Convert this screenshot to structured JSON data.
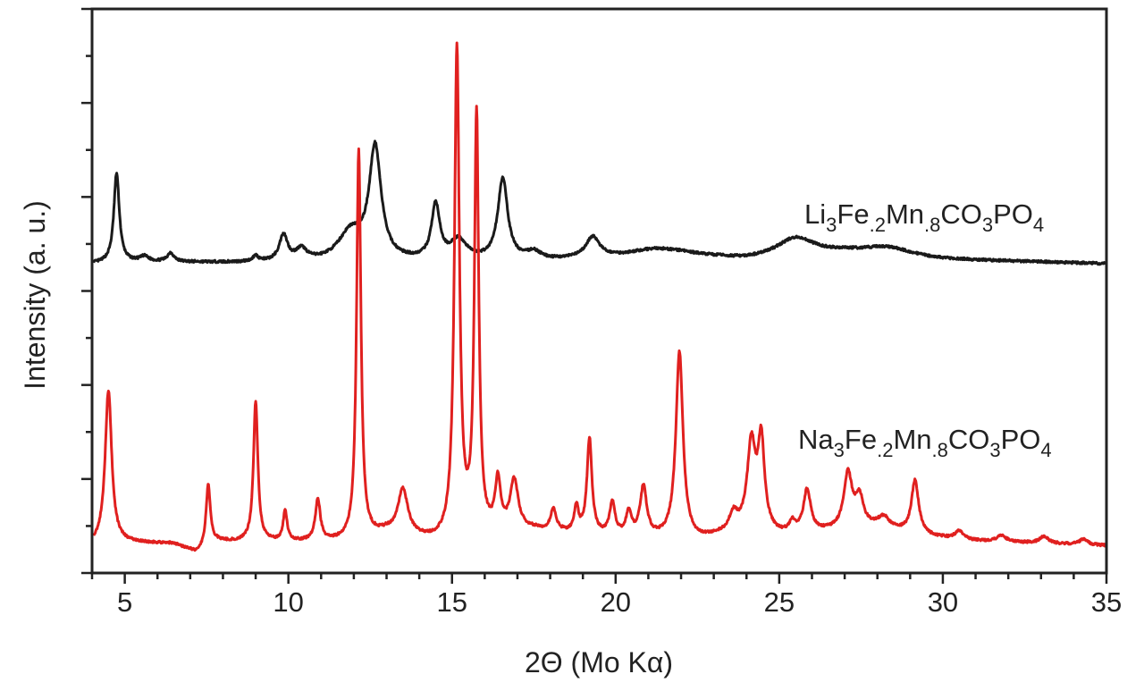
{
  "chart_data": {
    "type": "line",
    "title": "",
    "xlabel": "2Θ (Mo Kα)",
    "ylabel": "Intensity (a. u.)",
    "xlim": [
      4,
      35
    ],
    "ylim": [
      0,
      6
    ],
    "xticks": [
      5,
      10,
      15,
      20,
      25,
      30,
      35
    ],
    "x_minor_step": 1,
    "y_major_step": 1,
    "y_minor_step": 0.5,
    "y_tick_labels_shown": false,
    "grid": false,
    "series": [
      {
        "name": "Li3Fe.2Mn.8CO3PO4",
        "label": "Li3Fe.2Mn.8CO3PO4",
        "color": "#1a1a1a",
        "baseline": [
          [
            4.05,
            3.29
          ],
          [
            5.5,
            3.31
          ],
          [
            8,
            3.3
          ],
          [
            11,
            3.3
          ],
          [
            14,
            3.31
          ],
          [
            18,
            3.32
          ],
          [
            22,
            3.38
          ],
          [
            24,
            3.33
          ],
          [
            27,
            3.4
          ],
          [
            30,
            3.33
          ],
          [
            35,
            3.29
          ]
        ],
        "peaks": [
          {
            "x": 4.75,
            "top": 4.25,
            "w": 0.1
          },
          {
            "x": 5.6,
            "top": 3.36,
            "w": 0.15
          },
          {
            "x": 6.4,
            "top": 3.4,
            "w": 0.12
          },
          {
            "x": 9.0,
            "top": 3.36,
            "w": 0.1
          },
          {
            "x": 9.85,
            "top": 3.58,
            "w": 0.15
          },
          {
            "x": 10.4,
            "top": 3.42,
            "w": 0.2
          },
          {
            "x": 11.9,
            "top": 3.6,
            "w": 0.45
          },
          {
            "x": 12.65,
            "top": 4.49,
            "w": 0.22
          },
          {
            "x": 14.5,
            "top": 3.89,
            "w": 0.15
          },
          {
            "x": 15.2,
            "top": 3.52,
            "w": 0.3
          },
          {
            "x": 16.55,
            "top": 4.18,
            "w": 0.18
          },
          {
            "x": 17.5,
            "top": 3.4,
            "w": 0.25
          },
          {
            "x": 19.3,
            "top": 3.56,
            "w": 0.25
          },
          {
            "x": 21.2,
            "top": 3.44,
            "w": 0.9
          },
          {
            "x": 25.5,
            "top": 3.56,
            "w": 0.7
          },
          {
            "x": 28.3,
            "top": 3.46,
            "w": 0.9
          }
        ]
      },
      {
        "name": "Na3Fe.2Mn.8CO3PO4",
        "label": "Na3Fe.2Mn.8CO3PO4",
        "color": "#e0201f",
        "baseline": [
          [
            4.05,
            0.3
          ],
          [
            5,
            0.32
          ],
          [
            6.5,
            0.31
          ],
          [
            7.2,
            0.21
          ],
          [
            7.8,
            0.33
          ],
          [
            12,
            0.33
          ],
          [
            13,
            0.42
          ],
          [
            14.5,
            0.33
          ],
          [
            17.5,
            0.45
          ],
          [
            19,
            0.4
          ],
          [
            22.5,
            0.34
          ],
          [
            24,
            0.45
          ],
          [
            25,
            0.4
          ],
          [
            28,
            0.48
          ],
          [
            29.7,
            0.38
          ],
          [
            31,
            0.34
          ],
          [
            35,
            0.29
          ]
        ],
        "peaks": [
          {
            "x": 4.5,
            "top": 1.94,
            "w": 0.12
          },
          {
            "x": 7.55,
            "top": 0.93,
            "w": 0.08
          },
          {
            "x": 9.0,
            "top": 1.82,
            "w": 0.08
          },
          {
            "x": 9.9,
            "top": 0.66,
            "w": 0.07
          },
          {
            "x": 10.9,
            "top": 0.77,
            "w": 0.09
          },
          {
            "x": 12.15,
            "top": 4.49,
            "w": 0.08
          },
          {
            "x": 13.5,
            "top": 0.87,
            "w": 0.18
          },
          {
            "x": 15.15,
            "top": 5.55,
            "w": 0.09
          },
          {
            "x": 15.75,
            "top": 4.82,
            "w": 0.08
          },
          {
            "x": 16.4,
            "top": 0.93,
            "w": 0.1
          },
          {
            "x": 16.9,
            "top": 0.96,
            "w": 0.15
          },
          {
            "x": 18.1,
            "top": 0.66,
            "w": 0.1
          },
          {
            "x": 18.8,
            "top": 0.68,
            "w": 0.08
          },
          {
            "x": 19.2,
            "top": 1.41,
            "w": 0.09
          },
          {
            "x": 19.9,
            "top": 0.72,
            "w": 0.1
          },
          {
            "x": 20.4,
            "top": 0.62,
            "w": 0.1
          },
          {
            "x": 20.85,
            "top": 0.89,
            "w": 0.12
          },
          {
            "x": 21.95,
            "top": 2.34,
            "w": 0.13
          },
          {
            "x": 23.6,
            "top": 0.6,
            "w": 0.15
          },
          {
            "x": 24.15,
            "top": 1.34,
            "w": 0.15
          },
          {
            "x": 24.45,
            "top": 1.36,
            "w": 0.12
          },
          {
            "x": 25.4,
            "top": 0.52,
            "w": 0.1
          },
          {
            "x": 25.85,
            "top": 0.87,
            "w": 0.13
          },
          {
            "x": 27.1,
            "top": 1.04,
            "w": 0.15
          },
          {
            "x": 27.45,
            "top": 0.78,
            "w": 0.15
          },
          {
            "x": 28.2,
            "top": 0.58,
            "w": 0.2
          },
          {
            "x": 29.15,
            "top": 0.98,
            "w": 0.13
          },
          {
            "x": 30.5,
            "top": 0.44,
            "w": 0.15
          },
          {
            "x": 31.8,
            "top": 0.4,
            "w": 0.15
          },
          {
            "x": 33.1,
            "top": 0.39,
            "w": 0.15
          },
          {
            "x": 34.3,
            "top": 0.36,
            "w": 0.15
          }
        ]
      }
    ]
  }
}
